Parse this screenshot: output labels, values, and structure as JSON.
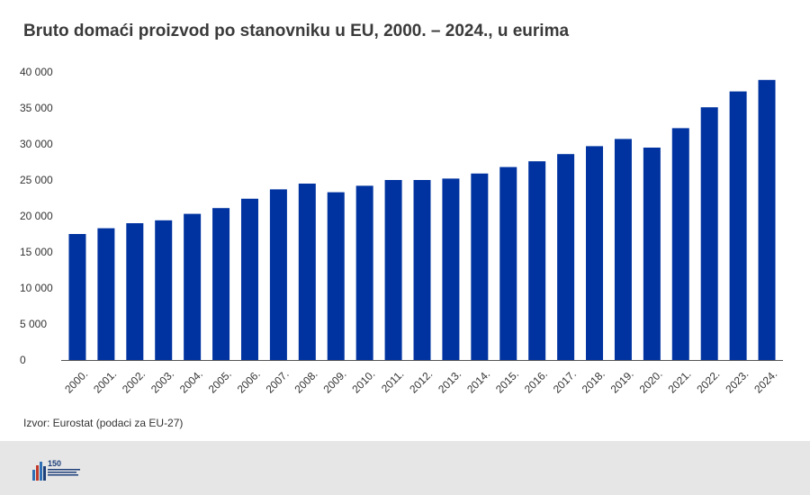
{
  "title": "Bruto domaći proizvod po stanovniku u EU, 2000. – 2024., u eurima",
  "source": "Izvor: Eurostat (podaci za EU-27)",
  "footer": {
    "logo_number": "150"
  },
  "colors": {
    "bar": "#0033a0",
    "axis": "#555555",
    "text": "#333333",
    "footer_bg": "#e6e6e6"
  },
  "chart_data": {
    "type": "bar",
    "title": "Bruto domaći proizvod po stanovniku u EU, 2000. – 2024., u eurima",
    "xlabel": "",
    "ylabel": "",
    "ylim": [
      0,
      40000
    ],
    "y_ticks": [
      0,
      5000,
      10000,
      15000,
      20000,
      25000,
      30000,
      35000,
      40000
    ],
    "y_tick_labels": [
      "0",
      "5 000",
      "10 000",
      "15 000",
      "20 000",
      "25 000",
      "30 000",
      "35 000",
      "40 000"
    ],
    "grid": false,
    "categories": [
      "2000.",
      "2001.",
      "2002.",
      "2003.",
      "2004.",
      "2005.",
      "2006.",
      "2007.",
      "2008.",
      "2009.",
      "2010.",
      "2011.",
      "2012.",
      "2013.",
      "2014.",
      "2015.",
      "2016.",
      "2017.",
      "2018.",
      "2019.",
      "2020.",
      "2021.",
      "2022.",
      "2023.",
      "2024."
    ],
    "values": [
      17500,
      18300,
      19000,
      19400,
      20300,
      21100,
      22400,
      23700,
      24500,
      23300,
      24200,
      25000,
      25000,
      25200,
      25900,
      26800,
      27600,
      28600,
      29700,
      30700,
      29500,
      32200,
      35100,
      37300,
      38900
    ]
  }
}
